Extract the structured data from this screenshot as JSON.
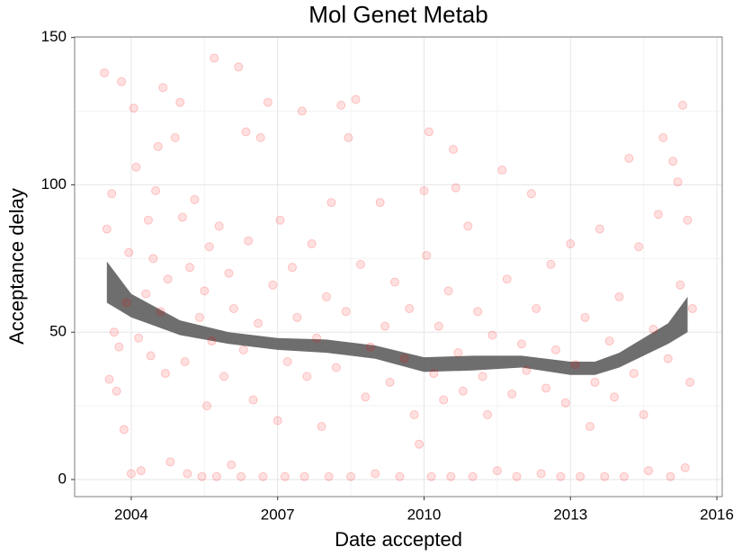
{
  "chart_data": {
    "type": "scatter",
    "title": "Mol Genet Metab",
    "x_label": "Date accepted",
    "y_label": "Acceptance delay",
    "xlim": [
      2002.84,
      2016.11
    ],
    "ylim": [
      -5.8,
      150.2
    ],
    "xticks": [
      2004,
      2007,
      2010,
      2013,
      2016
    ],
    "yticks": [
      0,
      50,
      100,
      150
    ],
    "xminorticks": [
      2005.5,
      2008.5,
      2011.5,
      2014.5
    ],
    "yminorticks": [
      25,
      75,
      125
    ],
    "grid": true,
    "color": "#ff0000",
    "x": [
      2003.45,
      2003.5,
      2003.55,
      2003.6,
      2003.65,
      2003.7,
      2003.75,
      2003.8,
      2003.85,
      2003.9,
      2003.95,
      2004.0,
      2004.05,
      2004.1,
      2004.15,
      2004.2,
      2004.3,
      2004.35,
      2004.4,
      2004.45,
      2004.5,
      2004.55,
      2004.6,
      2004.65,
      2004.7,
      2004.75,
      2004.8,
      2004.9,
      2005.0,
      2005.05,
      2005.1,
      2005.15,
      2005.2,
      2005.3,
      2005.4,
      2005.45,
      2005.5,
      2005.55,
      2005.6,
      2005.65,
      2005.7,
      2005.75,
      2005.8,
      2005.9,
      2006.0,
      2006.05,
      2006.1,
      2006.2,
      2006.25,
      2006.3,
      2006.35,
      2006.4,
      2006.5,
      2006.6,
      2006.65,
      2006.7,
      2006.8,
      2006.9,
      2007.0,
      2007.05,
      2007.15,
      2007.2,
      2007.3,
      2007.4,
      2007.5,
      2007.55,
      2007.6,
      2007.7,
      2007.8,
      2007.9,
      2008.0,
      2008.05,
      2008.1,
      2008.2,
      2008.3,
      2008.4,
      2008.45,
      2008.5,
      2008.6,
      2008.7,
      2008.8,
      2008.9,
      2009.0,
      2009.1,
      2009.2,
      2009.3,
      2009.4,
      2009.5,
      2009.6,
      2009.7,
      2009.8,
      2009.9,
      2010.0,
      2010.05,
      2010.1,
      2010.15,
      2010.2,
      2010.3,
      2010.4,
      2010.5,
      2010.55,
      2010.6,
      2010.65,
      2010.7,
      2010.8,
      2010.9,
      2011.0,
      2011.1,
      2011.2,
      2011.3,
      2011.4,
      2011.5,
      2011.6,
      2011.7,
      2011.8,
      2011.9,
      2012.0,
      2012.1,
      2012.2,
      2012.3,
      2012.4,
      2012.5,
      2012.6,
      2012.7,
      2012.8,
      2012.9,
      2013.0,
      2013.1,
      2013.2,
      2013.3,
      2013.4,
      2013.5,
      2013.6,
      2013.7,
      2013.8,
      2013.9,
      2014.0,
      2014.1,
      2014.2,
      2014.3,
      2014.4,
      2014.5,
      2014.6,
      2014.7,
      2014.8,
      2014.9,
      2015.0,
      2015.05,
      2015.1,
      2015.2,
      2015.25,
      2015.3,
      2015.35,
      2015.4,
      2015.45,
      2015.5
    ],
    "values": [
      138,
      85,
      34,
      97,
      50,
      30,
      45,
      135,
      17,
      60,
      77,
      2,
      126,
      106,
      48,
      3,
      63,
      88,
      42,
      75,
      98,
      113,
      57,
      133,
      36,
      68,
      6,
      116,
      128,
      89,
      40,
      2,
      72,
      95,
      55,
      1,
      64,
      25,
      79,
      47,
      143,
      1,
      86,
      35,
      70,
      5,
      58,
      140,
      1,
      44,
      118,
      81,
      27,
      53,
      116,
      1,
      128,
      66,
      20,
      88,
      1,
      40,
      72,
      55,
      125,
      1,
      35,
      80,
      48,
      18,
      62,
      1,
      94,
      38,
      127,
      57,
      116,
      1,
      129,
      73,
      28,
      45,
      2,
      94,
      52,
      33,
      67,
      1,
      41,
      58,
      22,
      12,
      98,
      76,
      118,
      1,
      36,
      52,
      27,
      64,
      1,
      112,
      99,
      43,
      30,
      86,
      1,
      57,
      35,
      22,
      49,
      3,
      105,
      68,
      29,
      1,
      46,
      37,
      97,
      58,
      2,
      31,
      73,
      44,
      1,
      26,
      80,
      39,
      1,
      55,
      18,
      33,
      85,
      1,
      47,
      28,
      62,
      1,
      109,
      36,
      79,
      22,
      3,
      51,
      90,
      116,
      41,
      1,
      108,
      101,
      66,
      127,
      4,
      88,
      33,
      58
    ],
    "smooth": {
      "color": "#555555",
      "x": [
        2003.5,
        2004,
        2005,
        2006,
        2007,
        2008,
        2009,
        2010,
        2011,
        2012,
        2013,
        2013.5,
        2014,
        2015,
        2015.4
      ],
      "upper": [
        74,
        63,
        54,
        50,
        48,
        47.5,
        45.5,
        41.5,
        42,
        42,
        40,
        40,
        43,
        53,
        62
      ],
      "lower": [
        60,
        55,
        49,
        46,
        44,
        43,
        41,
        36.5,
        37,
        38,
        35.5,
        35.5,
        38,
        46,
        50
      ]
    }
  }
}
